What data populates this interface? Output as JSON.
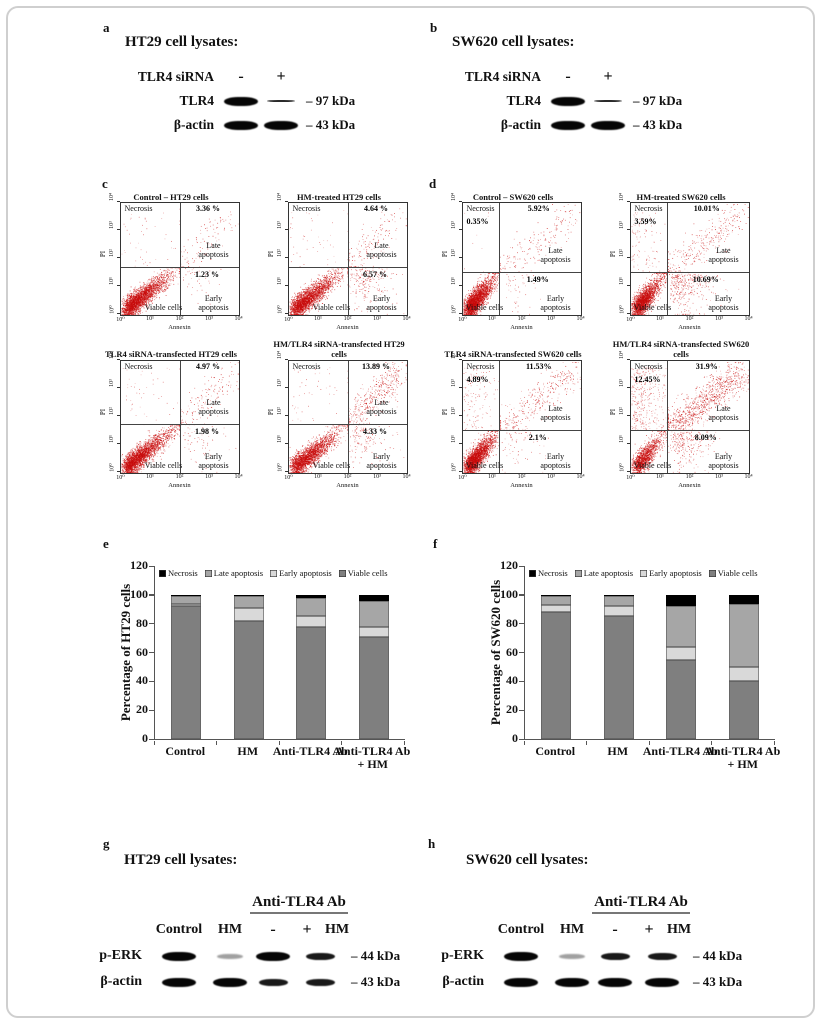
{
  "figure": {
    "flow_axes": {
      "y": "PI",
      "x": "Annexin",
      "ticks": [
        "10⁰",
        "10¹",
        "10²",
        "10³",
        "10⁴"
      ]
    },
    "quadrant_labels": {
      "necrosis": "Necrosis",
      "late": "Late apoptosis",
      "early": "Early apoptosis",
      "viable": "Viable cells"
    },
    "scatter_color": "#cc1010"
  },
  "panels": {
    "a": {
      "label": "a",
      "title": "HT29 cell lysates:",
      "header": "TLR4 siRNA",
      "lanes": [
        "-",
        "+"
      ],
      "rows": [
        {
          "name": "TLR4",
          "marker": "– 97 kDa",
          "bands": [
            "strong",
            "thin"
          ]
        },
        {
          "name": "β-actin",
          "marker": "– 43 kDa",
          "bands": [
            "strong",
            "strong"
          ]
        }
      ]
    },
    "b": {
      "label": "b",
      "title": "SW620 cell lysates:",
      "header": "TLR4 siRNA",
      "lanes": [
        "-",
        "+"
      ],
      "rows": [
        {
          "name": "TLR4",
          "marker": "– 97 kDa",
          "bands": [
            "strong",
            "thin"
          ]
        },
        {
          "name": "β-actin",
          "marker": "– 43 kDa",
          "bands": [
            "strong",
            "strong"
          ]
        }
      ]
    },
    "c": {
      "label": "c",
      "crosshair": {
        "vx": 0.5,
        "hyb": 0.43
      },
      "plots": [
        {
          "title": "Control – HT29 cells",
          "upper_right": "3.36 %",
          "lower_right": "1.23 %",
          "necrosis": ""
        },
        {
          "title": "HM-treated HT29 cells",
          "upper_right": "4.64 %",
          "lower_right": "6.57 %",
          "necrosis": ""
        },
        {
          "title": "TLR4 siRNA-transfected HT29 cells",
          "upper_right": "4.97 %",
          "lower_right": "1.98 %",
          "necrosis": ""
        },
        {
          "title": "HM/TLR4 siRNA-transfected HT29 cells",
          "upper_right": "13.89 %",
          "lower_right": "4.33 %",
          "necrosis": ""
        }
      ]
    },
    "d": {
      "label": "d",
      "crosshair": {
        "vx": 0.31,
        "hyb": 0.38
      },
      "plots": [
        {
          "title": "Control – SW620 cells",
          "upper_right": "5.92%",
          "lower_right": "1.49%",
          "necrosis": "0.35%"
        },
        {
          "title": "HM-treated SW620 cells",
          "upper_right": "10.01%",
          "lower_right": "10.69%",
          "necrosis": "3.59%"
        },
        {
          "title": "TLR4 siRNA-transfected SW620 cells",
          "upper_right": "11.53%",
          "lower_right": "2.1%",
          "necrosis": "4.89%"
        },
        {
          "title": "HM/TLR4 siRNA-transfected SW620 cells",
          "upper_right": "31.9%",
          "lower_right": "8.09%",
          "necrosis": "12.45%"
        }
      ]
    },
    "e": {
      "label": "e"
    },
    "f": {
      "label": "f"
    },
    "g": {
      "label": "g",
      "title": "HT29 cell lysates:",
      "group": "Anti-TLR4 Ab",
      "cols": [
        "Control",
        "HM",
        "-",
        "+",
        "HM"
      ],
      "rows": [
        {
          "name": "p-ERK",
          "marker": "– 44 kDa",
          "bands": [
            "strong",
            "faint",
            "strong",
            "medium"
          ]
        },
        {
          "name": "β-actin",
          "marker": "– 43 kDa",
          "bands": [
            "strong",
            "strong",
            "medium",
            "medium"
          ]
        }
      ]
    },
    "h": {
      "label": "h",
      "title": "SW620 cell lysates:",
      "group": "Anti-TLR4 Ab",
      "cols": [
        "Control",
        "HM",
        "-",
        "+",
        "HM"
      ],
      "rows": [
        {
          "name": "p-ERK",
          "marker": "– 44 kDa",
          "bands": [
            "strong",
            "faint",
            "medium",
            "medium"
          ]
        },
        {
          "name": "β-actin",
          "marker": "– 43 kDa",
          "bands": [
            "strong",
            "strong",
            "strong",
            "strong"
          ]
        }
      ]
    }
  },
  "chart_data": [
    {
      "type": "bar",
      "stacked": true,
      "panel": "e",
      "ylabel": "Percentage of HT29 cells",
      "xlabel": "",
      "ylim": [
        0,
        120
      ],
      "yticks": [
        0,
        20,
        40,
        60,
        80,
        100,
        120
      ],
      "categories": [
        "Control",
        "HM",
        "Anti-TLR4 Ab",
        "Anti-TLR4 Ab + HM"
      ],
      "series": [
        {
          "name": "Viable cells",
          "color": "#7f7f7f",
          "values": [
            92,
            82,
            78,
            71
          ]
        },
        {
          "name": "Early apoptosis",
          "color": "#d9d9d9",
          "values": [
            2,
            9,
            7,
            7
          ]
        },
        {
          "name": "Late apoptosis",
          "color": "#a6a6a6",
          "values": [
            5,
            8,
            13,
            18
          ]
        },
        {
          "name": "Necrosis",
          "color": "#000000",
          "values": [
            1,
            1,
            2,
            4
          ]
        }
      ],
      "legend": [
        "Necrosis",
        "Late apoptosis",
        "Early apoptosis",
        "Viable cells"
      ],
      "legend_position": "top",
      "grid": false
    },
    {
      "type": "bar",
      "stacked": true,
      "panel": "f",
      "ylabel": "Percentage of SW620 cells",
      "xlabel": "",
      "ylim": [
        0,
        120
      ],
      "yticks": [
        0,
        20,
        40,
        60,
        80,
        100,
        120
      ],
      "categories": [
        "Control",
        "HM",
        "Anti-TLR4 Ab",
        "Anti-TLR4 Ab + HM"
      ],
      "series": [
        {
          "name": "Viable cells",
          "color": "#7f7f7f",
          "values": [
            88,
            85,
            55,
            40
          ]
        },
        {
          "name": "Early apoptosis",
          "color": "#d9d9d9",
          "values": [
            5,
            7,
            9,
            10
          ]
        },
        {
          "name": "Late apoptosis",
          "color": "#a6a6a6",
          "values": [
            6,
            7,
            28,
            44
          ]
        },
        {
          "name": "Necrosis",
          "color": "#000000",
          "values": [
            1,
            1,
            8,
            6
          ]
        }
      ],
      "legend": [
        "Necrosis",
        "Late apoptosis",
        "Early apoptosis",
        "Viable cells"
      ],
      "legend_position": "top",
      "grid": false
    },
    {
      "type": "scatter",
      "panel": "c",
      "xlabel": "Annexin",
      "ylabel": "PI",
      "plots": [
        {
          "title": "Control – HT29 cells",
          "late_apoptosis": 3.36,
          "early_apoptosis": 1.23
        },
        {
          "title": "HM-treated HT29 cells",
          "late_apoptosis": 4.64,
          "early_apoptosis": 6.57
        },
        {
          "title": "TLR4 siRNA-transfected HT29 cells",
          "late_apoptosis": 4.97,
          "early_apoptosis": 1.98
        },
        {
          "title": "HM/TLR4 siRNA-transfected HT29 cells",
          "late_apoptosis": 13.89,
          "early_apoptosis": 4.33
        }
      ]
    },
    {
      "type": "scatter",
      "panel": "d",
      "xlabel": "Annexin",
      "ylabel": "PI",
      "plots": [
        {
          "title": "Control – SW620 cells",
          "necrosis": 0.35,
          "late_apoptosis": 5.92,
          "early_apoptosis": 1.49
        },
        {
          "title": "HM-treated SW620 cells",
          "necrosis": 3.59,
          "late_apoptosis": 10.01,
          "early_apoptosis": 10.69
        },
        {
          "title": "TLR4 siRNA-transfected SW620 cells",
          "necrosis": 4.89,
          "late_apoptosis": 11.53,
          "early_apoptosis": 2.1
        },
        {
          "title": "HM/TLR4 siRNA-transfected SW620 cells",
          "necrosis": 12.45,
          "late_apoptosis": 31.9,
          "early_apoptosis": 8.09
        }
      ]
    }
  ]
}
